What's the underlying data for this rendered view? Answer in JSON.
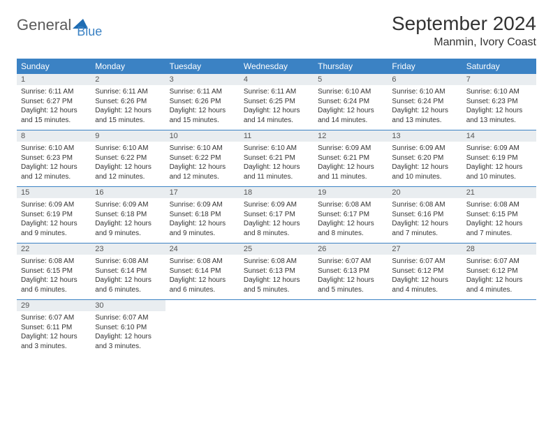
{
  "brand": {
    "name1": "General",
    "name2": "Blue"
  },
  "title": "September 2024",
  "location": "Manmin, Ivory Coast",
  "colors": {
    "header_bg": "#3b82c4",
    "header_text": "#ffffff",
    "daynum_bg": "#e9edf0",
    "border": "#3b82c4",
    "text": "#333333"
  },
  "day_names": [
    "Sunday",
    "Monday",
    "Tuesday",
    "Wednesday",
    "Thursday",
    "Friday",
    "Saturday"
  ],
  "layout": {
    "cols": 7,
    "rows": 5,
    "first_day_offset": 0,
    "days_in_month": 30
  },
  "days": [
    {
      "n": 1,
      "sunrise": "6:11 AM",
      "sunset": "6:27 PM",
      "daylight": "12 hours and 15 minutes."
    },
    {
      "n": 2,
      "sunrise": "6:11 AM",
      "sunset": "6:26 PM",
      "daylight": "12 hours and 15 minutes."
    },
    {
      "n": 3,
      "sunrise": "6:11 AM",
      "sunset": "6:26 PM",
      "daylight": "12 hours and 15 minutes."
    },
    {
      "n": 4,
      "sunrise": "6:11 AM",
      "sunset": "6:25 PM",
      "daylight": "12 hours and 14 minutes."
    },
    {
      "n": 5,
      "sunrise": "6:10 AM",
      "sunset": "6:24 PM",
      "daylight": "12 hours and 14 minutes."
    },
    {
      "n": 6,
      "sunrise": "6:10 AM",
      "sunset": "6:24 PM",
      "daylight": "12 hours and 13 minutes."
    },
    {
      "n": 7,
      "sunrise": "6:10 AM",
      "sunset": "6:23 PM",
      "daylight": "12 hours and 13 minutes."
    },
    {
      "n": 8,
      "sunrise": "6:10 AM",
      "sunset": "6:23 PM",
      "daylight": "12 hours and 12 minutes."
    },
    {
      "n": 9,
      "sunrise": "6:10 AM",
      "sunset": "6:22 PM",
      "daylight": "12 hours and 12 minutes."
    },
    {
      "n": 10,
      "sunrise": "6:10 AM",
      "sunset": "6:22 PM",
      "daylight": "12 hours and 12 minutes."
    },
    {
      "n": 11,
      "sunrise": "6:10 AM",
      "sunset": "6:21 PM",
      "daylight": "12 hours and 11 minutes."
    },
    {
      "n": 12,
      "sunrise": "6:09 AM",
      "sunset": "6:21 PM",
      "daylight": "12 hours and 11 minutes."
    },
    {
      "n": 13,
      "sunrise": "6:09 AM",
      "sunset": "6:20 PM",
      "daylight": "12 hours and 10 minutes."
    },
    {
      "n": 14,
      "sunrise": "6:09 AM",
      "sunset": "6:19 PM",
      "daylight": "12 hours and 10 minutes."
    },
    {
      "n": 15,
      "sunrise": "6:09 AM",
      "sunset": "6:19 PM",
      "daylight": "12 hours and 9 minutes."
    },
    {
      "n": 16,
      "sunrise": "6:09 AM",
      "sunset": "6:18 PM",
      "daylight": "12 hours and 9 minutes."
    },
    {
      "n": 17,
      "sunrise": "6:09 AM",
      "sunset": "6:18 PM",
      "daylight": "12 hours and 9 minutes."
    },
    {
      "n": 18,
      "sunrise": "6:09 AM",
      "sunset": "6:17 PM",
      "daylight": "12 hours and 8 minutes."
    },
    {
      "n": 19,
      "sunrise": "6:08 AM",
      "sunset": "6:17 PM",
      "daylight": "12 hours and 8 minutes."
    },
    {
      "n": 20,
      "sunrise": "6:08 AM",
      "sunset": "6:16 PM",
      "daylight": "12 hours and 7 minutes."
    },
    {
      "n": 21,
      "sunrise": "6:08 AM",
      "sunset": "6:15 PM",
      "daylight": "12 hours and 7 minutes."
    },
    {
      "n": 22,
      "sunrise": "6:08 AM",
      "sunset": "6:15 PM",
      "daylight": "12 hours and 6 minutes."
    },
    {
      "n": 23,
      "sunrise": "6:08 AM",
      "sunset": "6:14 PM",
      "daylight": "12 hours and 6 minutes."
    },
    {
      "n": 24,
      "sunrise": "6:08 AM",
      "sunset": "6:14 PM",
      "daylight": "12 hours and 6 minutes."
    },
    {
      "n": 25,
      "sunrise": "6:08 AM",
      "sunset": "6:13 PM",
      "daylight": "12 hours and 5 minutes."
    },
    {
      "n": 26,
      "sunrise": "6:07 AM",
      "sunset": "6:13 PM",
      "daylight": "12 hours and 5 minutes."
    },
    {
      "n": 27,
      "sunrise": "6:07 AM",
      "sunset": "6:12 PM",
      "daylight": "12 hours and 4 minutes."
    },
    {
      "n": 28,
      "sunrise": "6:07 AM",
      "sunset": "6:12 PM",
      "daylight": "12 hours and 4 minutes."
    },
    {
      "n": 29,
      "sunrise": "6:07 AM",
      "sunset": "6:11 PM",
      "daylight": "12 hours and 3 minutes."
    },
    {
      "n": 30,
      "sunrise": "6:07 AM",
      "sunset": "6:10 PM",
      "daylight": "12 hours and 3 minutes."
    }
  ],
  "labels": {
    "sunrise": "Sunrise:",
    "sunset": "Sunset:",
    "daylight": "Daylight:"
  }
}
